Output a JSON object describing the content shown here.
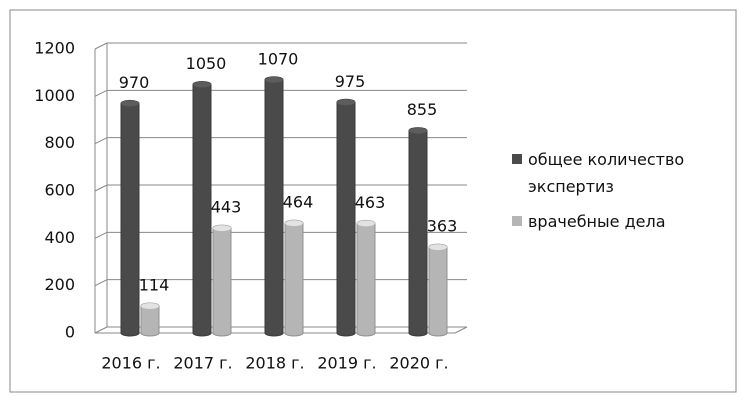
{
  "chart_data": {
    "type": "bar3d",
    "categories": [
      "2016 г.",
      "2017 г.",
      "2018 г.",
      "2019 г.",
      "2020 г."
    ],
    "series": [
      {
        "name": "общее количество экспертиз",
        "color": "#4a4a4a",
        "values": [
          970,
          1050,
          1070,
          975,
          855
        ]
      },
      {
        "name": "врачебные дела",
        "color": "#b5b5b5",
        "values": [
          114,
          443,
          464,
          463,
          363
        ]
      }
    ],
    "ylim": [
      0,
      1200
    ],
    "yticks": [
      0,
      200,
      400,
      600,
      800,
      1000,
      1200
    ],
    "grid": true,
    "legend": "right"
  }
}
